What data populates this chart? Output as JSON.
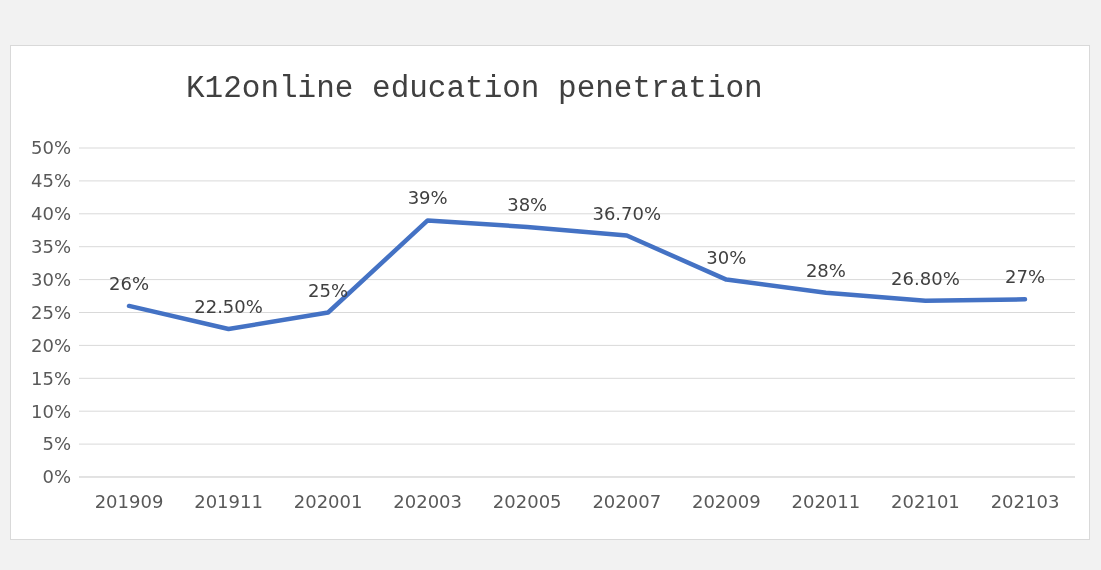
{
  "chart_data": {
    "type": "line",
    "title": "K12online education penetration",
    "categories": [
      "201909",
      "201911",
      "202001",
      "202003",
      "202005",
      "202007",
      "202009",
      "202011",
      "202101",
      "202103"
    ],
    "series": [
      {
        "color": "#4472c4",
        "values": [
          26,
          22.5,
          25,
          39,
          38,
          36.7,
          30,
          28,
          26.8,
          27
        ],
        "value_labels": [
          "26%",
          "22.50%",
          "25%",
          "39%",
          "38%",
          "36.70%",
          "30%",
          "28%",
          "26.80%",
          "27%"
        ]
      }
    ],
    "ylim": [
      0,
      50
    ],
    "yticks": [
      {
        "value": 0,
        "label": "0%"
      },
      {
        "value": 5,
        "label": "5%"
      },
      {
        "value": 10,
        "label": "10%"
      },
      {
        "value": 15,
        "label": "15%"
      },
      {
        "value": 20,
        "label": "20%"
      },
      {
        "value": 25,
        "label": "25%"
      },
      {
        "value": 30,
        "label": "30%"
      },
      {
        "value": 35,
        "label": "35%"
      },
      {
        "value": 40,
        "label": "40%"
      },
      {
        "value": 45,
        "label": "45%"
      },
      {
        "value": 50,
        "label": "50%"
      }
    ],
    "grid": "y",
    "legend": false,
    "marker": "none",
    "line_style": "solid"
  }
}
